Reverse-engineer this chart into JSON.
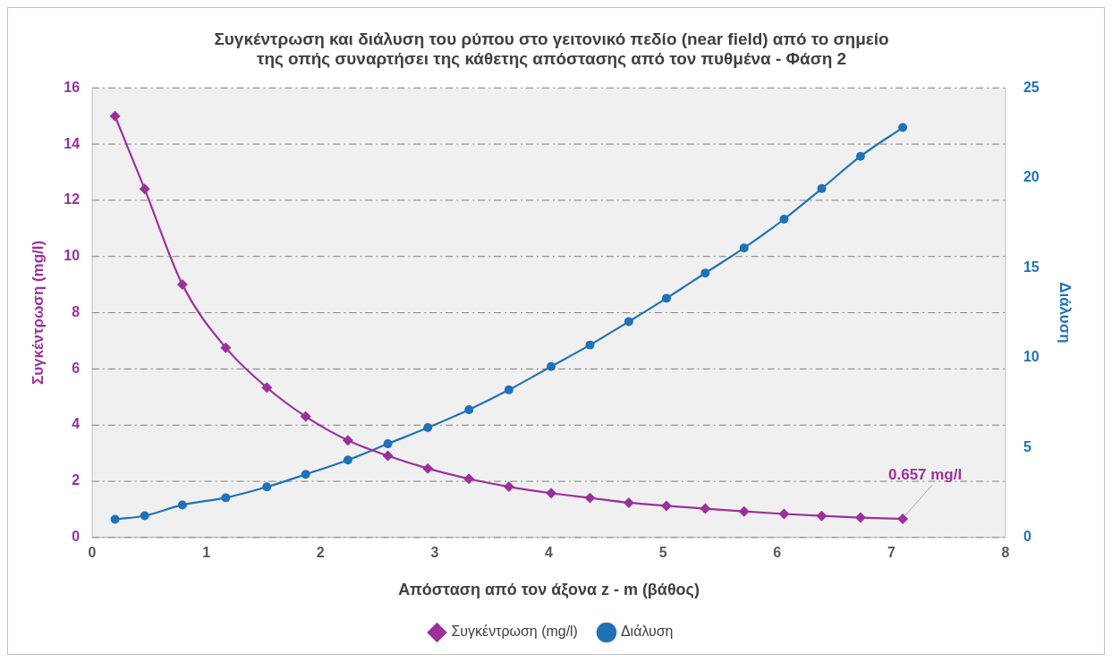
{
  "chart_data": {
    "type": "line",
    "title": "Συγκέντρωση και διάλυση του ρύπου στο γειτονικό πεδίο (near field) από το σημείο\nτης οπής συναρτήσει της κάθετης απόστασης από τον πυθμένα - Φάση 2",
    "xlabel": "Απόσταση από τον άξονα z - m (βάθος)",
    "ylabel": "Συγκέντρωση (mg/l)",
    "y2label": "Διάλυση",
    "x": [
      0.2,
      0.46,
      0.79,
      1.17,
      1.53,
      1.87,
      2.24,
      2.59,
      2.94,
      3.3,
      3.65,
      4.02,
      4.36,
      4.7,
      5.03,
      5.37,
      5.71,
      6.06,
      6.39,
      6.73,
      7.1
    ],
    "series": [
      {
        "name": "Συγκέντρωση (mg/l)",
        "color": "#9b309b",
        "marker": "diamond",
        "values": [
          15,
          12.4,
          9,
          6.75,
          5.33,
          4.3,
          3.45,
          2.9,
          2.45,
          2.08,
          1.8,
          1.57,
          1.4,
          1.23,
          1.12,
          1.02,
          0.92,
          0.83,
          0.76,
          0.7,
          0.657
        ]
      },
      {
        "name": "Διάλυση",
        "color": "#1f72b8",
        "marker": "circle",
        "axis": "y2",
        "values": [
          1,
          1.2,
          1.8,
          2.2,
          2.8,
          3.5,
          4.3,
          5.2,
          6.1,
          7.1,
          8.2,
          9.5,
          10.7,
          12,
          13.3,
          14.7,
          16.1,
          17.7,
          19.4,
          21.2,
          22.8
        ]
      }
    ],
    "xlim": [
      0,
      8
    ],
    "xticks": [
      0,
      1,
      2,
      3,
      4,
      5,
      6,
      7,
      8
    ],
    "ylim": [
      0,
      16
    ],
    "yticks": [
      0,
      2,
      4,
      6,
      8,
      10,
      12,
      14,
      16
    ],
    "y2lim": [
      0,
      25
    ],
    "y2ticks": [
      0,
      5,
      10,
      15,
      20,
      25
    ],
    "grid": "y",
    "legend": "bottom",
    "line_style": "solid",
    "annotations": [
      {
        "text": "0.657 mg/l",
        "x": 7.1,
        "y": 0.657
      }
    ]
  }
}
